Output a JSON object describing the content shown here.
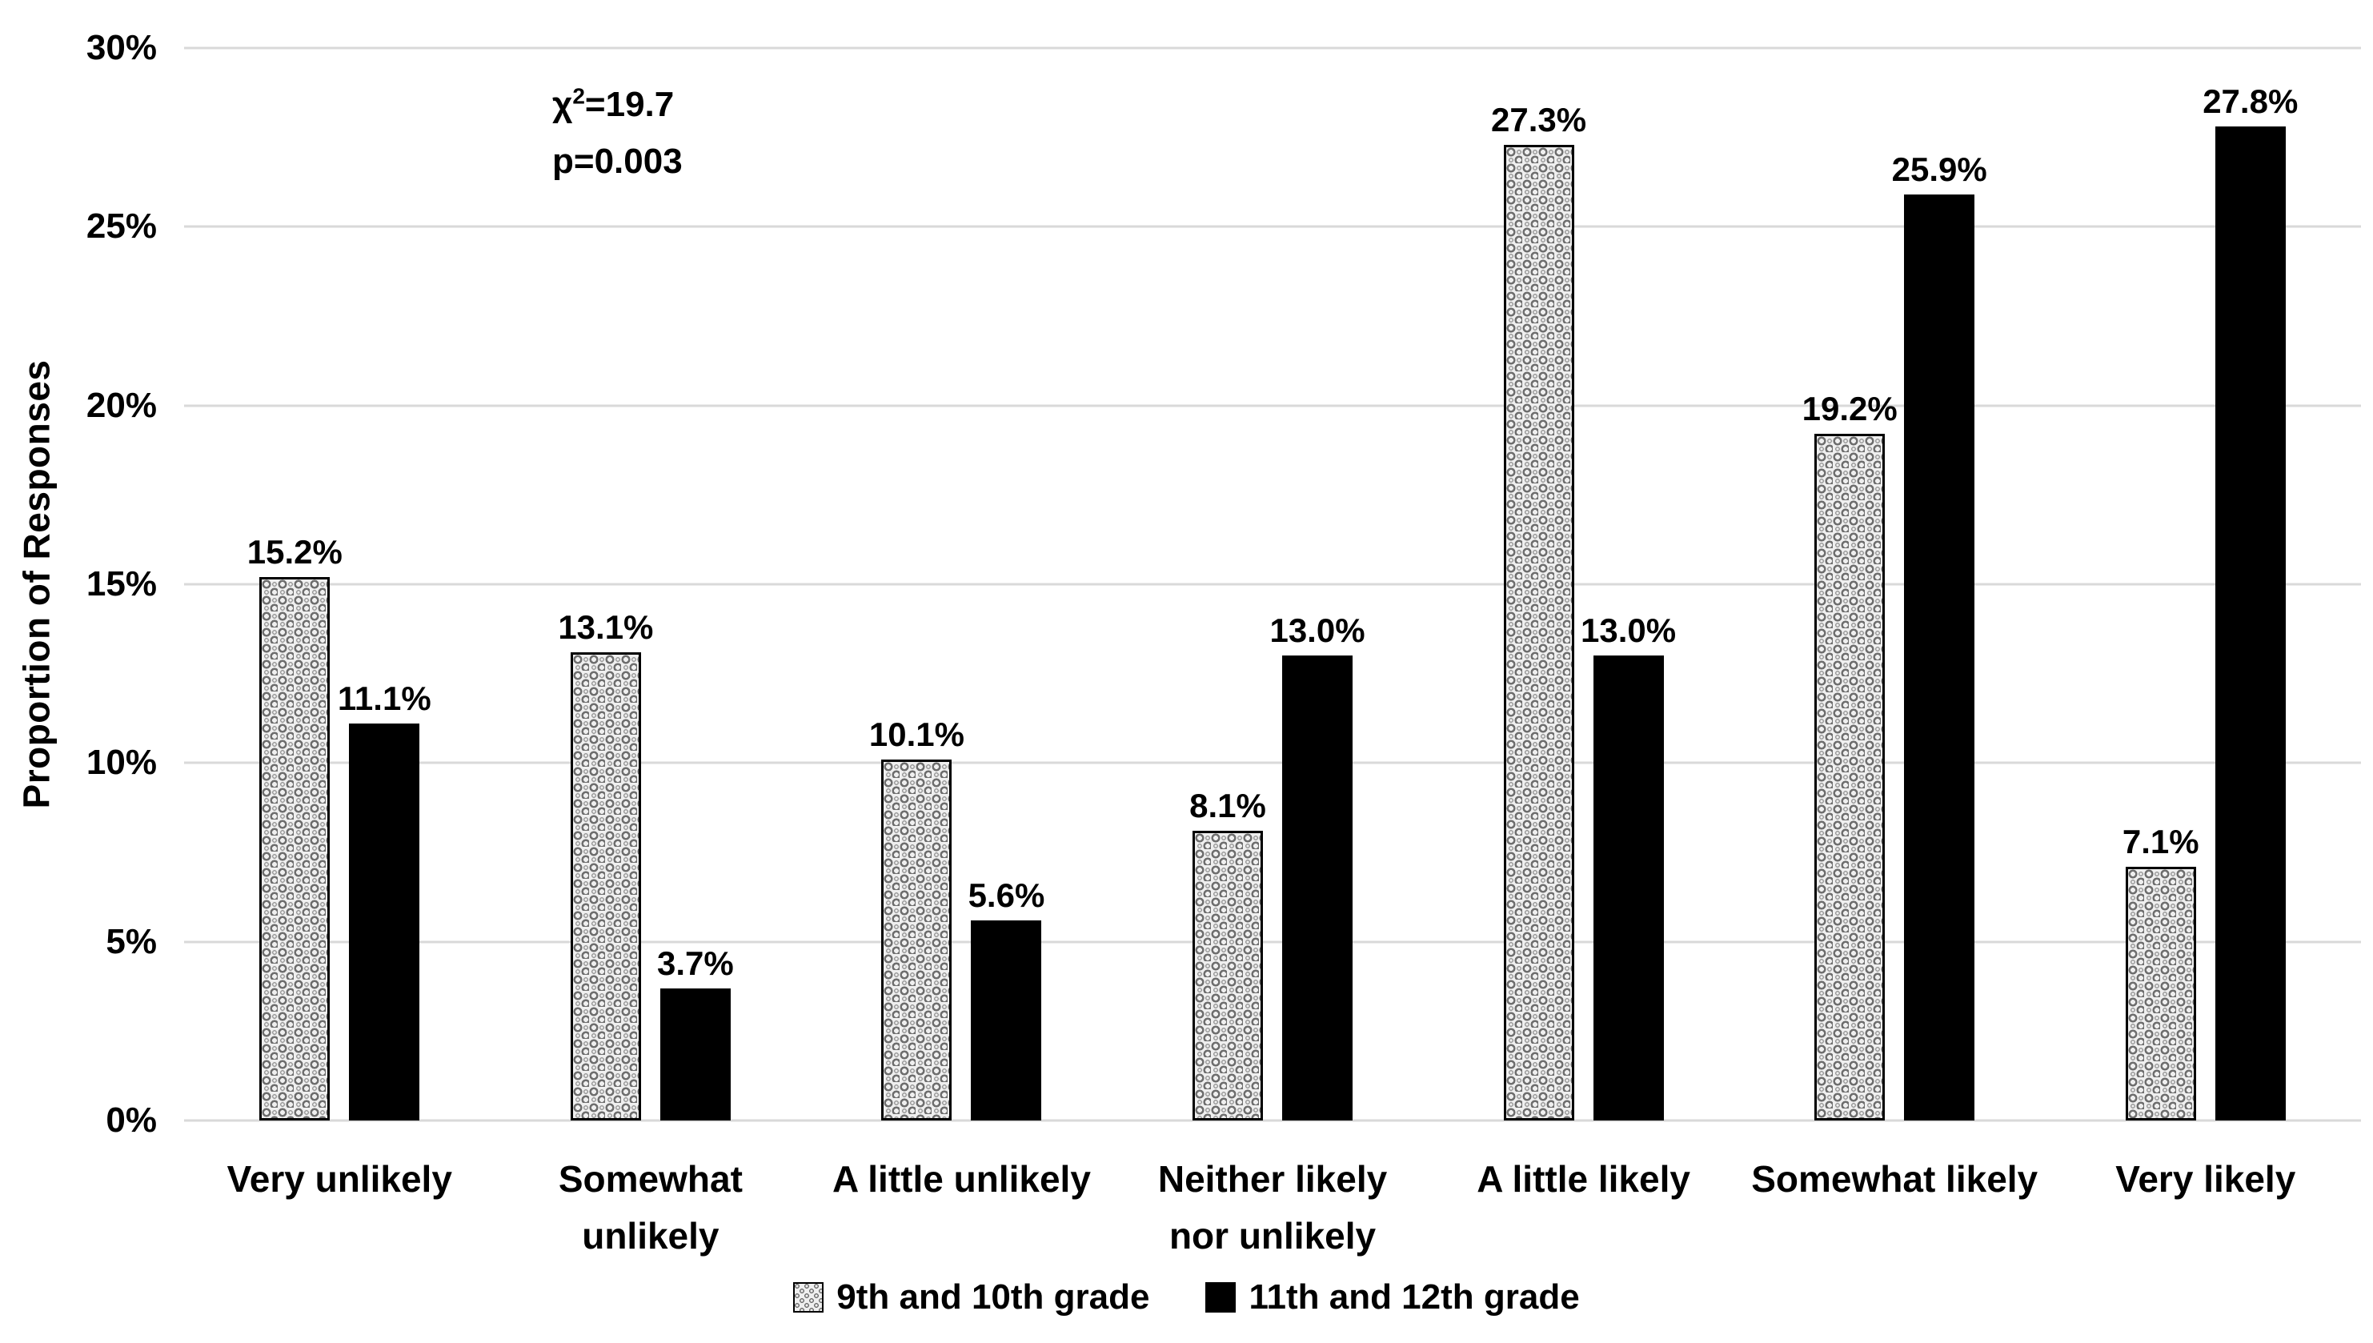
{
  "chart_data": {
    "type": "bar",
    "title": "",
    "xlabel": "",
    "ylabel": "Proportion of Responses",
    "categories": [
      "Very unlikely",
      "Somewhat\nunlikely",
      "A little unlikely",
      "Neither likely\nnor unlikely",
      "A little likely",
      "Somewhat likely",
      "Very likely"
    ],
    "series": [
      {
        "name": "9th and 10th grade",
        "style": "patterned",
        "values": [
          15.2,
          13.1,
          10.1,
          8.1,
          27.3,
          19.2,
          7.1
        ],
        "labels": [
          "15.2%",
          "13.1%",
          "10.1%",
          "8.1%",
          "27.3%",
          "19.2%",
          "7.1%"
        ]
      },
      {
        "name": "11th and 12th grade",
        "style": "solid-black",
        "values": [
          11.1,
          3.7,
          5.6,
          13.0,
          13.0,
          25.9,
          27.8
        ],
        "labels": [
          "11.1%",
          "3.7%",
          "5.6%",
          "13.0%",
          "13.0%",
          "25.9%",
          "27.8%"
        ]
      }
    ],
    "y_axis": {
      "min": 0,
      "max": 30,
      "tick_step": 5,
      "tick_labels": [
        "0%",
        "5%",
        "10%",
        "15%",
        "20%",
        "25%",
        "30%"
      ]
    },
    "annotation": {
      "chi_base": "χ",
      "chi_exponent": "2",
      "chi_value": "=19.7",
      "p_line": "p=0.003"
    },
    "legend_position": "bottom",
    "grid": "horizontal-only",
    "colors": {
      "series1_fill": "#efefef",
      "series1_pattern": "#6f6f6f",
      "series2_fill": "#000000",
      "gridline": "#d9d9d9",
      "text": "#000000",
      "background": "#ffffff"
    }
  }
}
